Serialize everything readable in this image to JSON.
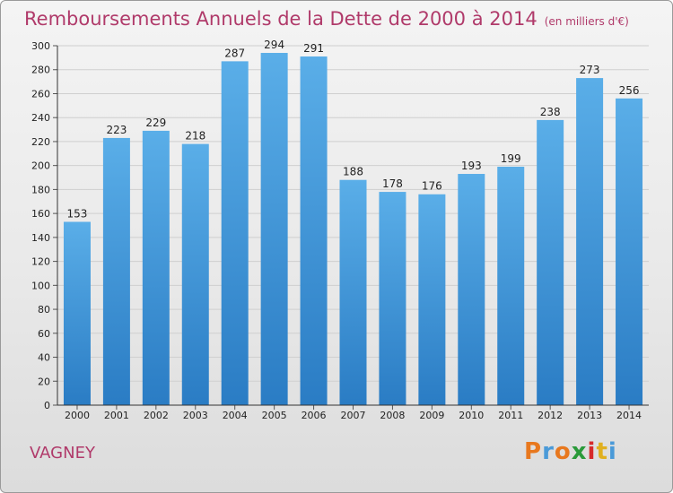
{
  "header": {
    "title": "Remboursements Annuels de la Dette de 2000 à 2014",
    "subtitle": "(en milliers d'€)"
  },
  "footer": {
    "commune": "VAGNEY",
    "logo_text": "Proxiti",
    "logo_colors": [
      "#e8781e",
      "#4a9ad8",
      "#e8781e",
      "#2a9a3a",
      "#d62a2a",
      "#e0b020",
      "#4a9ad8"
    ]
  },
  "colors": {
    "title": "#b03a6a",
    "bar_top": "#5aaee8",
    "bar_bottom": "#2a7cc4",
    "grid": "#cfcfcf"
  },
  "chart_data": {
    "type": "bar",
    "title": "Remboursements Annuels de la Dette de 2000 à 2014",
    "subtitle": "(en milliers d'€)",
    "categories": [
      "2000",
      "2001",
      "2002",
      "2003",
      "2004",
      "2005",
      "2006",
      "2007",
      "2008",
      "2009",
      "2010",
      "2011",
      "2012",
      "2013",
      "2014"
    ],
    "values": [
      153,
      223,
      229,
      218,
      287,
      294,
      291,
      188,
      178,
      176,
      193,
      199,
      238,
      273,
      256
    ],
    "ylim": [
      0,
      300
    ],
    "yticks": [
      0,
      20,
      40,
      60,
      80,
      100,
      120,
      140,
      160,
      180,
      200,
      220,
      240,
      260,
      280,
      300
    ],
    "grid": true,
    "data_labels": true
  }
}
